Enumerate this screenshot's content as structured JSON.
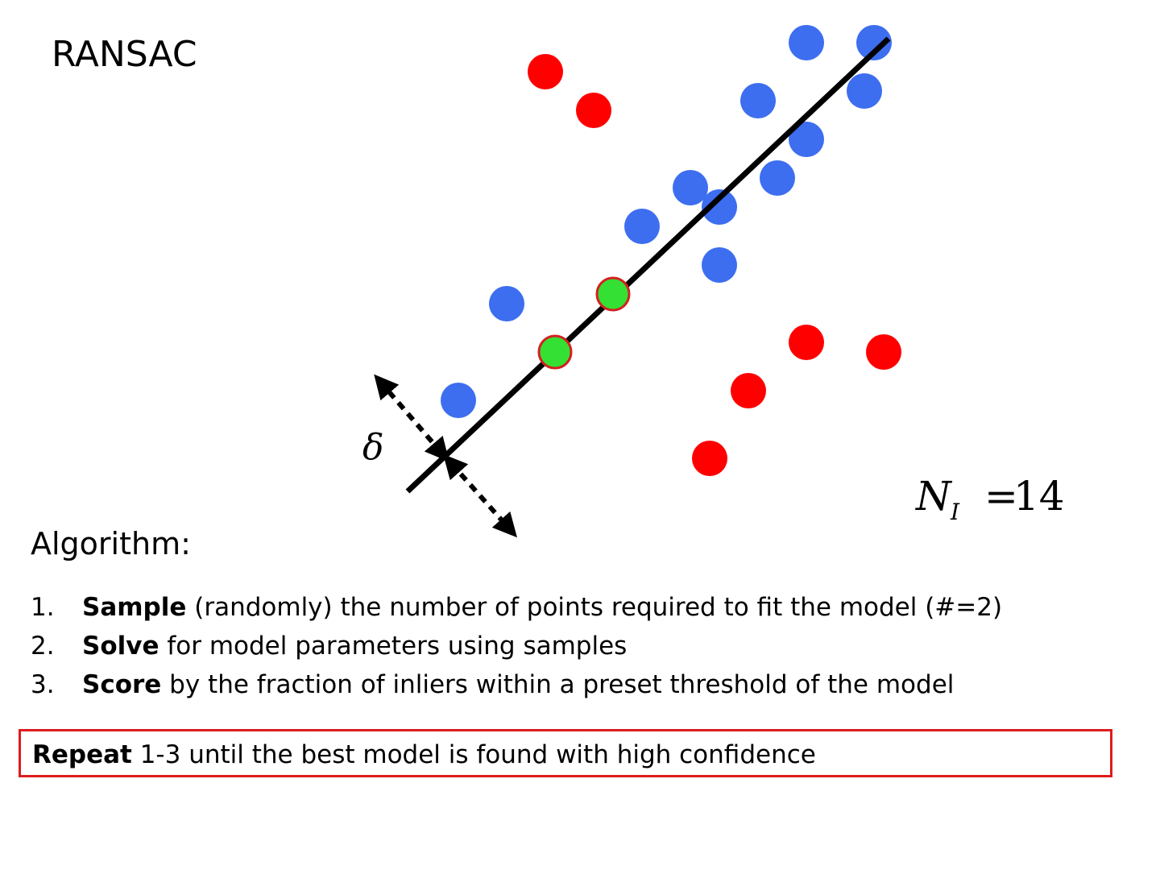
{
  "title": "RANSAC",
  "diagram": {
    "colors": {
      "inlier": "#3d6ef0",
      "outlier": "#ff0000",
      "sample": "#33e033",
      "sample_ring": "#d42020",
      "line": "#000000"
    },
    "threshold_symbol": "δ",
    "inlier_count": {
      "symbol": "N",
      "subscript": "I",
      "equals": "=",
      "value": "14"
    }
  },
  "algorithm": {
    "heading": "Algorithm:",
    "steps": [
      {
        "number": "1.",
        "keyword": "Sample",
        "text": " (randomly) the number of points required to fit the model (#=2)"
      },
      {
        "number": "2.",
        "keyword": "Solve",
        "text": " for model parameters using samples"
      },
      {
        "number": "3.",
        "keyword": "Score",
        "text": " by the fraction of inliers within a preset threshold of the model"
      }
    ]
  },
  "repeat": {
    "keyword": "Repeat",
    "text": " 1-3 until the best model is found with high confidence"
  }
}
